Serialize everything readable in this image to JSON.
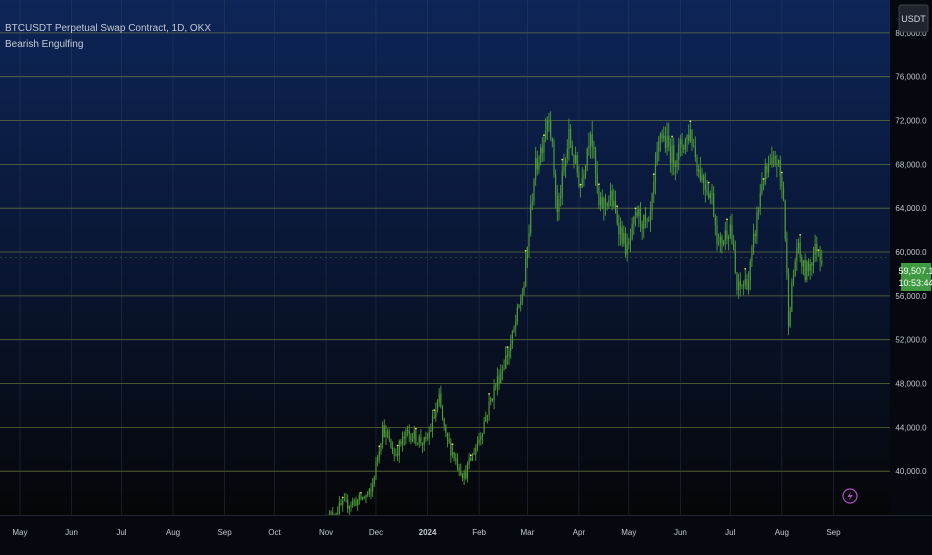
{
  "header": {
    "title": "BTCUSDT Perpetual Swap Contract, 1D, OKX",
    "indicator": "Bearish Engulfing"
  },
  "currency_badge": "USDT",
  "price_badge": {
    "price": "59,507.1",
    "countdown": "10:53:44"
  },
  "colors": {
    "background_top": "#0d2557",
    "background_bottom": "#050608",
    "gridline": "#6f7e3c",
    "candle": "#4e9a3a",
    "signal": "#e8e866",
    "price_badge": "#3d9a40",
    "axis_text": "#c3c8d2"
  },
  "chart_data": {
    "type": "candlestick",
    "title": "BTCUSDT Perpetual Swap Contract, 1D, OKX",
    "xlabel": "",
    "ylabel": "",
    "ylim": [
      36000,
      83000
    ],
    "grid": true,
    "y_ticks": [
      40000,
      44000,
      48000,
      52000,
      56000,
      60000,
      64000,
      68000,
      72000,
      76000,
      80000
    ],
    "y_tick_labels": [
      "40,000.0",
      "44,000.0",
      "48,000.0",
      "52,000.0",
      "56,000.0",
      "60,000.0",
      "64,000.0",
      "68,000.0",
      "72,000.0",
      "76,000.0",
      "80,000.0"
    ],
    "x_ticks": [
      "2023-05-01",
      "2023-06-01",
      "2023-07-01",
      "2023-08-01",
      "2023-09-01",
      "2023-10-01",
      "2023-11-01",
      "2023-12-01",
      "2024-01-01",
      "2024-02-01",
      "2024-03-01",
      "2024-04-01",
      "2024-05-01",
      "2024-06-01",
      "2024-07-01",
      "2024-08-01",
      "2024-09-01"
    ],
    "x_tick_labels": [
      "May",
      "Jun",
      "Jul",
      "Aug",
      "Sep",
      "Oct",
      "Nov",
      "Dec",
      "2024",
      "Feb",
      "Mar",
      "Apr",
      "May",
      "Jun",
      "Jul",
      "Aug",
      "Sep"
    ],
    "x_range": [
      "2023-04-19",
      "2024-10-05"
    ],
    "last_price": 59507.1,
    "price_path": [
      [
        "2023-11-01",
        35500
      ],
      [
        "2023-11-10",
        36800
      ],
      [
        "2023-11-20",
        37300
      ],
      [
        "2023-11-28",
        38000
      ],
      [
        "2023-12-05",
        44000
      ],
      [
        "2023-12-12",
        41500
      ],
      [
        "2023-12-20",
        43500
      ],
      [
        "2023-12-31",
        42500
      ],
      [
        "2024-01-08",
        46500
      ],
      [
        "2024-01-12",
        43000
      ],
      [
        "2024-01-23",
        39500
      ],
      [
        "2024-02-01",
        43000
      ],
      [
        "2024-02-10",
        47500
      ],
      [
        "2024-02-20",
        51500
      ],
      [
        "2024-02-28",
        57000
      ],
      [
        "2024-03-05",
        67000
      ],
      [
        "2024-03-10",
        70000
      ],
      [
        "2024-03-14",
        73000
      ],
      [
        "2024-03-19",
        63500
      ],
      [
        "2024-03-26",
        70500
      ],
      [
        "2024-04-02",
        66000
      ],
      [
        "2024-04-08",
        71500
      ],
      [
        "2024-04-13",
        64000
      ],
      [
        "2024-04-20",
        65000
      ],
      [
        "2024-04-30",
        60000
      ],
      [
        "2024-05-06",
        63500
      ],
      [
        "2024-05-13",
        62000
      ],
      [
        "2024-05-20",
        71000
      ],
      [
        "2024-05-28",
        68500
      ],
      [
        "2024-06-07",
        71000
      ],
      [
        "2024-06-12",
        67500
      ],
      [
        "2024-06-20",
        65000
      ],
      [
        "2024-06-24",
        60500
      ],
      [
        "2024-07-01",
        62500
      ],
      [
        "2024-07-05",
        56500
      ],
      [
        "2024-07-12",
        57500
      ],
      [
        "2024-07-20",
        66500
      ],
      [
        "2024-07-29",
        68500
      ],
      [
        "2024-08-02",
        65000
      ],
      [
        "2024-08-05",
        54000
      ],
      [
        "2024-08-10",
        60500
      ],
      [
        "2024-08-15",
        58000
      ],
      [
        "2024-08-22",
        60500
      ],
      [
        "2024-08-25",
        59507
      ]
    ]
  }
}
